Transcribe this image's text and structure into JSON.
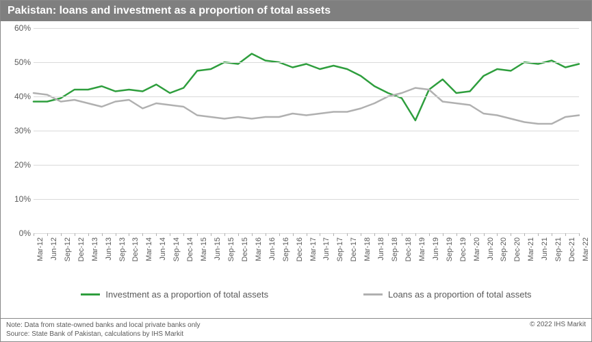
{
  "title": "Pakistan: loans and investment as a proportion of total assets",
  "chart": {
    "type": "line",
    "background_color": "#ffffff",
    "title_bar_bg": "#7f7f7f",
    "title_color": "#ffffff",
    "title_fontsize": 16,
    "axis_label_color": "#595959",
    "axis_label_fontsize": 12,
    "grid_color": "#d9d9d9",
    "ylim": [
      0,
      60
    ],
    "ytick_step": 10,
    "y_format": "percent",
    "categories": [
      "Mar-12",
      "Jun-12",
      "Sep-12",
      "Dec-12",
      "Mar-13",
      "Jun-13",
      "Sep-13",
      "Dec-13",
      "Mar-14",
      "Jun-14",
      "Sep-14",
      "Dec-14",
      "Mar-15",
      "Jun-15",
      "Sep-15",
      "Dec-15",
      "Mar-16",
      "Jun-16",
      "Sep-16",
      "Dec-16",
      "Mar-17",
      "Jun-17",
      "Sep-17",
      "Dec-17",
      "Mar-18",
      "Jun-18",
      "Sep-18",
      "Dec-18",
      "Mar-19",
      "Jun-19",
      "Sep-19",
      "Dec-19",
      "Mar-20",
      "Jun-20",
      "Sep-20",
      "Dec-20",
      "Mar-21",
      "Jun-21",
      "Sep-21",
      "Dec-21",
      "Mar-22"
    ],
    "series": [
      {
        "name": "Investment as a proportion of total assets",
        "color": "#2e9e3d",
        "line_width": 2.5,
        "values": [
          38.5,
          38.5,
          39.5,
          42.0,
          42.0,
          43.0,
          41.5,
          42.0,
          41.5,
          43.5,
          41.0,
          42.5,
          47.5,
          48.0,
          50.0,
          49.5,
          52.5,
          50.5,
          50.0,
          48.5,
          49.5,
          48.0,
          49.0,
          48.0,
          46.0,
          43.0,
          41.0,
          39.5,
          33.0,
          42.0,
          45.0,
          41.0,
          41.5,
          46.0,
          48.0,
          47.5,
          50.0,
          49.5,
          50.5,
          48.5,
          49.5
        ]
      },
      {
        "name": "Loans as a proportion of total assets",
        "color": "#b0b0b0",
        "line_width": 2.5,
        "values": [
          41.0,
          40.5,
          38.5,
          39.0,
          38.0,
          37.0,
          38.5,
          39.0,
          36.5,
          38.0,
          37.5,
          37.0,
          34.5,
          34.0,
          33.5,
          34.0,
          33.5,
          34.0,
          34.0,
          35.0,
          34.5,
          35.0,
          35.5,
          35.5,
          36.5,
          38.0,
          40.0,
          41.0,
          42.5,
          42.0,
          38.5,
          38.0,
          37.5,
          35.0,
          34.5,
          33.5,
          32.5,
          32.0,
          32.0,
          34.0,
          34.5
        ]
      }
    ],
    "legend_position": "bottom",
    "x_label_rotation": -90
  },
  "footer": {
    "note": "Note: Data from state-owned banks and local private banks only",
    "source": "Source: State Bank of Pakistan, calculations by IHS Markit",
    "copyright": "© 2022 IHS Markit"
  }
}
